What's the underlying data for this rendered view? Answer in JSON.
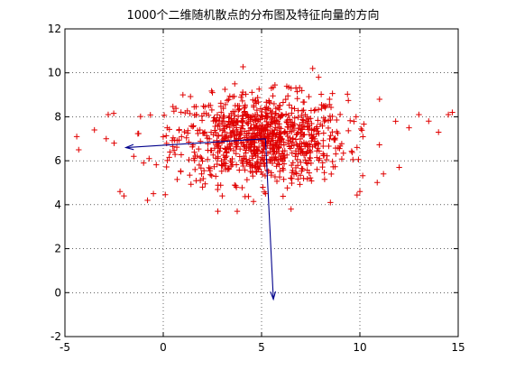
{
  "chart_data": {
    "type": "scatter",
    "title": "1000个二维随机散点的分布图及特征向量的方向",
    "xlabel": "",
    "ylabel": "",
    "xlim": [
      -5,
      15
    ],
    "ylim": [
      -2,
      12
    ],
    "xticks": [
      -5,
      0,
      5,
      10,
      15
    ],
    "yticks": [
      -2,
      0,
      2,
      4,
      6,
      8,
      10,
      12
    ],
    "grid": true,
    "marker": "+",
    "series": [
      {
        "marker_color": "#e00000",
        "count": 1000,
        "mean": [
          5,
          7
        ],
        "std": [
          3,
          1
        ],
        "points_sample": [
          [
            -4.3,
            6.5
          ],
          [
            -4.4,
            7.1
          ],
          [
            -3.5,
            7.4
          ],
          [
            -2.8,
            8.1
          ],
          [
            -2.9,
            7.0
          ],
          [
            -2.5,
            6.8
          ],
          [
            -2.2,
            4.6
          ],
          [
            -2.0,
            4.4
          ],
          [
            -0.8,
            4.2
          ],
          [
            -0.5,
            4.5
          ],
          [
            -1.5,
            6.2
          ],
          [
            -1.0,
            5.9
          ],
          [
            0.2,
            7.5
          ],
          [
            1.0,
            9.0
          ],
          [
            2.5,
            9.1
          ],
          [
            4.0,
            9.0
          ],
          [
            5.5,
            9.3
          ],
          [
            6.5,
            9.3
          ],
          [
            7.6,
            10.2
          ],
          [
            7.9,
            9.8
          ],
          [
            11.0,
            8.8
          ],
          [
            12.5,
            7.5
          ],
          [
            13.0,
            8.1
          ],
          [
            13.5,
            7.8
          ],
          [
            14.0,
            7.3
          ],
          [
            14.5,
            8.1
          ],
          [
            14.7,
            8.2
          ],
          [
            12.0,
            5.7
          ],
          [
            11.2,
            5.4
          ],
          [
            10.0,
            4.6
          ],
          [
            8.5,
            4.1
          ],
          [
            6.5,
            3.8
          ],
          [
            5.2,
            4.5
          ],
          [
            3.0,
            4.4
          ],
          [
            2.0,
            4.8
          ],
          [
            4.5,
            7.0
          ],
          [
            5.0,
            6.9
          ],
          [
            6.2,
            7.3
          ],
          [
            3.8,
            6.8
          ],
          [
            7.0,
            6.5
          ]
        ]
      }
    ],
    "vectors": [
      {
        "color": "#00008b",
        "from": [
          5.2,
          7.0
        ],
        "to": [
          -1.9,
          6.6
        ]
      },
      {
        "color": "#00008b",
        "from": [
          5.2,
          7.0
        ],
        "to": [
          5.6,
          -0.3
        ]
      }
    ]
  }
}
